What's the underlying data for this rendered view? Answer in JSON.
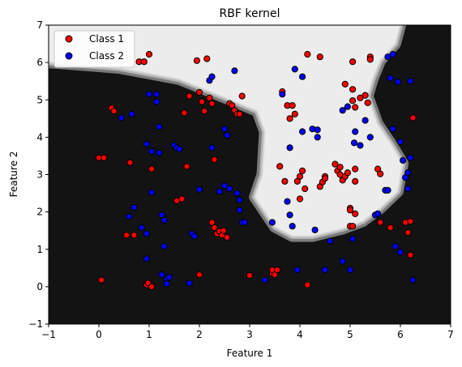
{
  "chart_data": {
    "type": "scatter",
    "title": "RBF kernel",
    "xlabel": "Feature 1",
    "ylabel": "Feature 2",
    "xlim": [
      -1,
      7
    ],
    "ylim": [
      -1,
      7
    ],
    "xticks": [
      "−1",
      "0",
      "1",
      "2",
      "3",
      "4",
      "5",
      "6",
      "7"
    ],
    "yticks": [
      "−1",
      "0",
      "1",
      "2",
      "3",
      "4",
      "5",
      "6",
      "7"
    ],
    "legend_position": "top-left",
    "background": "decision regions: dark (#131313) and light (#ececec) with gray boundary band",
    "decision_boundary": [
      [
        -1,
        6.0
      ],
      [
        0.4,
        5.85
      ],
      [
        1.6,
        5.55
      ],
      [
        2.7,
        4.95
      ],
      [
        3.15,
        4.7
      ],
      [
        3.3,
        4.15
      ],
      [
        3.25,
        3.0
      ],
      [
        3.1,
        2.4
      ],
      [
        3.5,
        1.6
      ],
      [
        3.85,
        1.35
      ],
      [
        4.25,
        1.35
      ],
      [
        4.85,
        1.55
      ],
      [
        5.25,
        1.75
      ],
      [
        5.6,
        2.1
      ],
      [
        5.95,
        2.55
      ],
      [
        6.05,
        3.3
      ],
      [
        5.8,
        3.85
      ],
      [
        5.55,
        4.35
      ],
      [
        5.35,
        5.1
      ],
      [
        5.45,
        5.55
      ],
      [
        5.6,
        6.05
      ],
      [
        5.9,
        6.5
      ],
      [
        6.0,
        7.0
      ]
    ],
    "series": [
      {
        "name": "Class 1",
        "color": "#ff0000",
        "points": [
          [
            0.0,
            3.45
          ],
          [
            0.05,
            0.18
          ],
          [
            0.1,
            3.45
          ],
          [
            0.25,
            4.78
          ],
          [
            0.3,
            4.7
          ],
          [
            0.55,
            1.38
          ],
          [
            0.62,
            3.32
          ],
          [
            0.7,
            1.38
          ],
          [
            0.8,
            6.02
          ],
          [
            0.9,
            6.02
          ],
          [
            0.95,
            0.05
          ],
          [
            0.98,
            0.1
          ],
          [
            1.0,
            6.22
          ],
          [
            1.05,
            3.15
          ],
          [
            1.05,
            0.0
          ],
          [
            1.55,
            2.3
          ],
          [
            1.65,
            2.35
          ],
          [
            1.7,
            4.65
          ],
          [
            1.75,
            3.22
          ],
          [
            1.8,
            5.1
          ],
          [
            1.95,
            6.05
          ],
          [
            2.0,
            0.32
          ],
          [
            2.0,
            5.2
          ],
          [
            2.05,
            4.95
          ],
          [
            2.1,
            4.7
          ],
          [
            2.15,
            6.1
          ],
          [
            2.2,
            5.05
          ],
          [
            2.25,
            4.9
          ],
          [
            2.25,
            1.72
          ],
          [
            2.3,
            1.58
          ],
          [
            2.3,
            3.4
          ],
          [
            2.35,
            1.42
          ],
          [
            2.4,
            1.48
          ],
          [
            2.45,
            1.38
          ],
          [
            2.48,
            1.5
          ],
          [
            2.55,
            1.32
          ],
          [
            2.6,
            4.9
          ],
          [
            2.65,
            4.85
          ],
          [
            2.7,
            4.72
          ],
          [
            2.75,
            4.62
          ],
          [
            2.8,
            4.62
          ],
          [
            2.85,
            5.1
          ],
          [
            3.0,
            0.3
          ],
          [
            3.45,
            0.35
          ],
          [
            3.45,
            0.45
          ],
          [
            3.5,
            0.32
          ],
          [
            3.55,
            0.45
          ],
          [
            3.6,
            3.22
          ],
          [
            3.65,
            5.22
          ],
          [
            3.7,
            2.82
          ],
          [
            3.75,
            4.85
          ],
          [
            3.8,
            4.5
          ],
          [
            3.85,
            4.85
          ],
          [
            3.9,
            4.62
          ],
          [
            3.95,
            2.82
          ],
          [
            4.0,
            2.95
          ],
          [
            4.0,
            2.35
          ],
          [
            4.05,
            3.1
          ],
          [
            4.1,
            2.62
          ],
          [
            4.15,
            6.22
          ],
          [
            4.15,
            0.05
          ],
          [
            4.4,
            6.15
          ],
          [
            4.4,
            2.68
          ],
          [
            4.45,
            2.8
          ],
          [
            4.5,
            2.95
          ],
          [
            4.5,
            2.9
          ],
          [
            4.7,
            3.28
          ],
          [
            4.75,
            3.1
          ],
          [
            4.8,
            3.2
          ],
          [
            4.8,
            3.0
          ],
          [
            4.85,
            2.85
          ],
          [
            4.9,
            5.42
          ],
          [
            4.9,
            2.95
          ],
          [
            4.95,
            3.05
          ],
          [
            5.0,
            2.1
          ],
          [
            5.0,
            2.05
          ],
          [
            5.0,
            1.62
          ],
          [
            5.05,
            4.98
          ],
          [
            5.05,
            1.62
          ],
          [
            5.1,
            1.95
          ],
          [
            5.1,
            4.8
          ],
          [
            5.1,
            3.15
          ],
          [
            5.1,
            2.82
          ],
          [
            5.2,
            5.05
          ],
          [
            5.05,
            6.02
          ],
          [
            5.05,
            5.28
          ],
          [
            5.3,
            5.12
          ],
          [
            5.35,
            4.92
          ],
          [
            5.4,
            6.15
          ],
          [
            5.4,
            6.08
          ],
          [
            5.55,
            3.15
          ],
          [
            5.6,
            3.02
          ],
          [
            5.6,
            1.72
          ],
          [
            5.8,
            1.58
          ],
          [
            6.1,
            1.72
          ],
          [
            6.15,
            1.45
          ],
          [
            6.2,
            1.75
          ],
          [
            6.2,
            0.85
          ],
          [
            6.25,
            4.52
          ]
        ]
      },
      {
        "name": "Class 2",
        "color": "#0000ff",
        "points": [
          [
            0.45,
            4.52
          ],
          [
            0.6,
            1.88
          ],
          [
            0.65,
            4.62
          ],
          [
            0.7,
            2.12
          ],
          [
            0.85,
            1.58
          ],
          [
            0.95,
            1.42
          ],
          [
            0.95,
            0.75
          ],
          [
            0.95,
            3.82
          ],
          [
            1.0,
            5.15
          ],
          [
            1.05,
            3.62
          ],
          [
            1.05,
            2.52
          ],
          [
            1.15,
            5.15
          ],
          [
            1.15,
            4.95
          ],
          [
            1.2,
            4.28
          ],
          [
            1.2,
            3.58
          ],
          [
            1.25,
            1.92
          ],
          [
            1.25,
            0.32
          ],
          [
            1.3,
            1.78
          ],
          [
            1.3,
            1.08
          ],
          [
            1.35,
            0.2
          ],
          [
            1.35,
            0.08
          ],
          [
            1.4,
            0.25
          ],
          [
            1.5,
            3.78
          ],
          [
            1.55,
            3.72
          ],
          [
            1.6,
            3.68
          ],
          [
            1.8,
            0.1
          ],
          [
            1.85,
            1.42
          ],
          [
            1.9,
            1.35
          ],
          [
            2.0,
            2.6
          ],
          [
            2.2,
            5.52
          ],
          [
            2.25,
            3.72
          ],
          [
            2.25,
            5.62
          ],
          [
            2.4,
            2.55
          ],
          [
            2.5,
            2.7
          ],
          [
            2.5,
            4.22
          ],
          [
            2.55,
            4.05
          ],
          [
            2.6,
            2.62
          ],
          [
            2.7,
            5.78
          ],
          [
            2.75,
            2.5
          ],
          [
            2.8,
            2.05
          ],
          [
            2.8,
            2.32
          ],
          [
            2.85,
            1.72
          ],
          [
            2.9,
            1.72
          ],
          [
            3.3,
            0.18
          ],
          [
            3.45,
            1.72
          ],
          [
            3.65,
            5.15
          ],
          [
            3.75,
            2.28
          ],
          [
            3.8,
            1.92
          ],
          [
            3.8,
            3.72
          ],
          [
            3.85,
            1.62
          ],
          [
            3.9,
            5.82
          ],
          [
            3.95,
            0.45
          ],
          [
            4.05,
            5.62
          ],
          [
            4.05,
            4.15
          ],
          [
            4.25,
            4.22
          ],
          [
            4.35,
            4.0
          ],
          [
            4.3,
            1.52
          ],
          [
            4.35,
            4.2
          ],
          [
            4.5,
            0.45
          ],
          [
            4.6,
            1.22
          ],
          [
            4.85,
            4.72
          ],
          [
            4.85,
            0.68
          ],
          [
            4.95,
            4.82
          ],
          [
            5.0,
            0.45
          ],
          [
            5.05,
            1.28
          ],
          [
            5.08,
            3.85
          ],
          [
            5.1,
            4.15
          ],
          [
            5.2,
            3.78
          ],
          [
            5.3,
            4.45
          ],
          [
            5.4,
            4.0
          ],
          [
            5.5,
            1.92
          ],
          [
            5.55,
            1.95
          ],
          [
            5.7,
            2.58
          ],
          [
            5.75,
            2.58
          ],
          [
            5.75,
            6.15
          ],
          [
            5.8,
            5.58
          ],
          [
            5.85,
            6.22
          ],
          [
            5.85,
            4.22
          ],
          [
            5.9,
            1.08
          ],
          [
            5.95,
            5.48
          ],
          [
            6.0,
            0.92
          ],
          [
            6.0,
            3.88
          ],
          [
            6.05,
            3.38
          ],
          [
            6.1,
            2.92
          ],
          [
            6.15,
            2.62
          ],
          [
            6.15,
            3.05
          ],
          [
            6.2,
            3.45
          ],
          [
            6.25,
            0.18
          ],
          [
            6.2,
            5.5
          ]
        ]
      }
    ]
  }
}
